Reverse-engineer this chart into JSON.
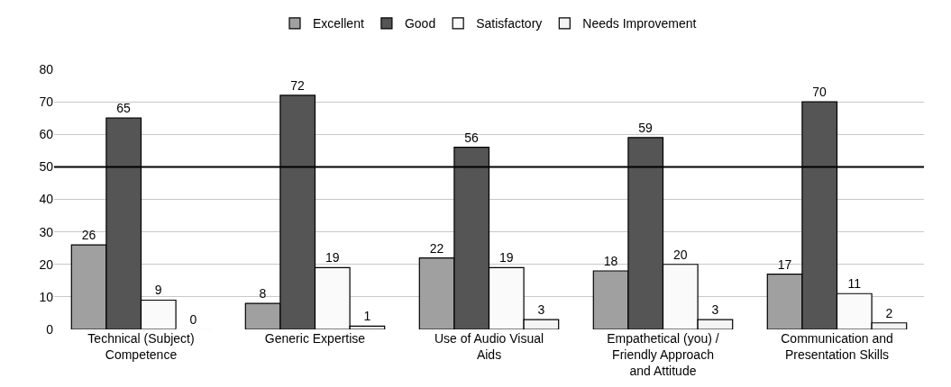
{
  "chart_data": {
    "type": "bar",
    "categories": [
      "Technical (Subject) Competence",
      "Generic Expertise",
      "Use of Audio Visual Aids",
      "Empathetical (you) / Friendly Approach and Attitude",
      "Communication and Presentation Skills"
    ],
    "series": [
      {
        "name": "Excellent",
        "color": "#a0a0a0",
        "values": [
          26,
          8,
          22,
          18,
          17
        ]
      },
      {
        "name": "Good",
        "color": "#555555",
        "values": [
          65,
          72,
          56,
          59,
          70
        ]
      },
      {
        "name": "Satisfactory",
        "color": "#fafafa",
        "values": [
          9,
          19,
          19,
          20,
          11
        ]
      },
      {
        "name": "Needs Improvement",
        "color": "#f4f4f4",
        "values": [
          0,
          1,
          3,
          3,
          2
        ]
      }
    ],
    "ylim": [
      0,
      80
    ],
    "yticks": [
      0,
      10,
      20,
      30,
      40,
      50,
      60,
      70,
      80
    ],
    "ref_lines": [
      {
        "axis": "y",
        "value": 50,
        "color": "#000000"
      }
    ],
    "grid": "y",
    "legend": "top",
    "data_labels": true
  }
}
